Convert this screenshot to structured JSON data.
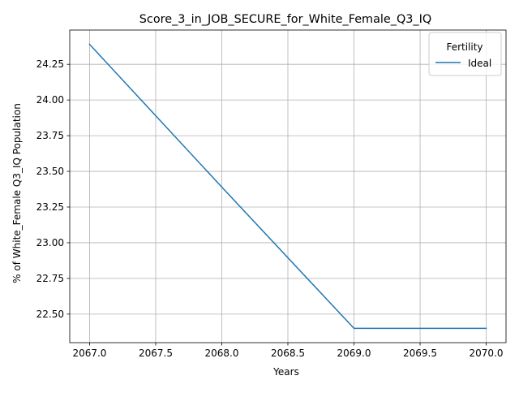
{
  "chart_data": {
    "type": "line",
    "title": "Score_3_in_JOB_SECURE_for_White_Female_Q3_IQ",
    "xlabel": "Years",
    "ylabel": "% of White_Female Q3_IQ Population",
    "xlim": [
      2066.85,
      2070.15
    ],
    "ylim": [
      22.3,
      24.49
    ],
    "xticks": [
      2067.0,
      2067.5,
      2068.0,
      2068.5,
      2069.0,
      2069.5,
      2070.0
    ],
    "xtick_labels": [
      "2067.0",
      "2067.5",
      "2068.0",
      "2068.5",
      "2069.0",
      "2069.5",
      "2070.0"
    ],
    "yticks": [
      22.5,
      22.75,
      23.0,
      23.25,
      23.5,
      23.75,
      24.0,
      24.25
    ],
    "ytick_labels": [
      "22.50",
      "22.75",
      "23.00",
      "23.25",
      "23.50",
      "23.75",
      "24.00",
      "24.25"
    ],
    "grid": true,
    "legend": {
      "title": "Fertility",
      "placement": "top-right"
    },
    "series": [
      {
        "name": "Ideal",
        "color": "#1f77b4",
        "x": [
          2067,
          2068,
          2069,
          2070
        ],
        "y": [
          24.39,
          23.39,
          22.4,
          22.4
        ]
      }
    ]
  }
}
